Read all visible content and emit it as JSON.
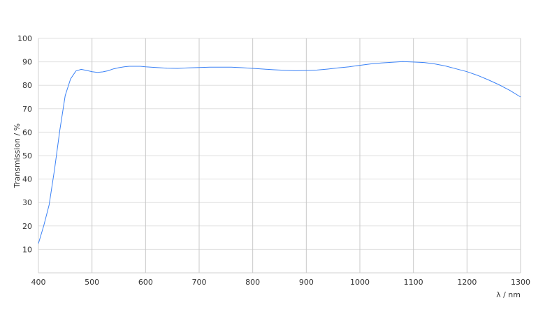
{
  "chart_data": {
    "type": "line",
    "title": "",
    "xlabel": "λ / nm",
    "ylabel": "Transmission / %",
    "xlim": [
      400,
      1300
    ],
    "ylim": [
      0,
      100
    ],
    "xticks": [
      400,
      500,
      600,
      700,
      800,
      900,
      1000,
      1100,
      1200,
      1300
    ],
    "yticks": [
      10,
      20,
      30,
      40,
      50,
      60,
      70,
      80,
      90,
      100
    ],
    "grid": true,
    "line_color": "#3b82f6",
    "series": [
      {
        "x": [
          400,
          410,
          420,
          430,
          440,
          450,
          460,
          470,
          480,
          490,
          500,
          510,
          520,
          530,
          540,
          550,
          560,
          570,
          580,
          590,
          600,
          620,
          640,
          660,
          680,
          700,
          720,
          760,
          780,
          800,
          820,
          840,
          860,
          880,
          900,
          920,
          940,
          960,
          980,
          1000,
          1020,
          1040,
          1060,
          1080,
          1100,
          1120,
          1140,
          1160,
          1180,
          1200,
          1220,
          1240,
          1260,
          1280,
          1300
        ],
        "y": [
          12.5,
          20.2,
          29,
          44,
          61,
          75.6,
          82.7,
          86.1,
          86.8,
          86.3,
          85.8,
          85.5,
          85.7,
          86.2,
          87.0,
          87.5,
          87.9,
          88.1,
          88.1,
          88.1,
          87.9,
          87.6,
          87.3,
          87.2,
          87.4,
          87.6,
          87.7,
          87.7,
          87.5,
          87.2,
          86.9,
          86.6,
          86.4,
          86.2,
          86.3,
          86.5,
          86.9,
          87.4,
          87.9,
          88.5,
          89.1,
          89.5,
          89.8,
          90.1,
          89.9,
          89.7,
          89.1,
          88.2,
          87.0,
          85.8,
          84.2,
          82.3,
          80.2,
          77.8,
          75.0
        ]
      }
    ]
  }
}
